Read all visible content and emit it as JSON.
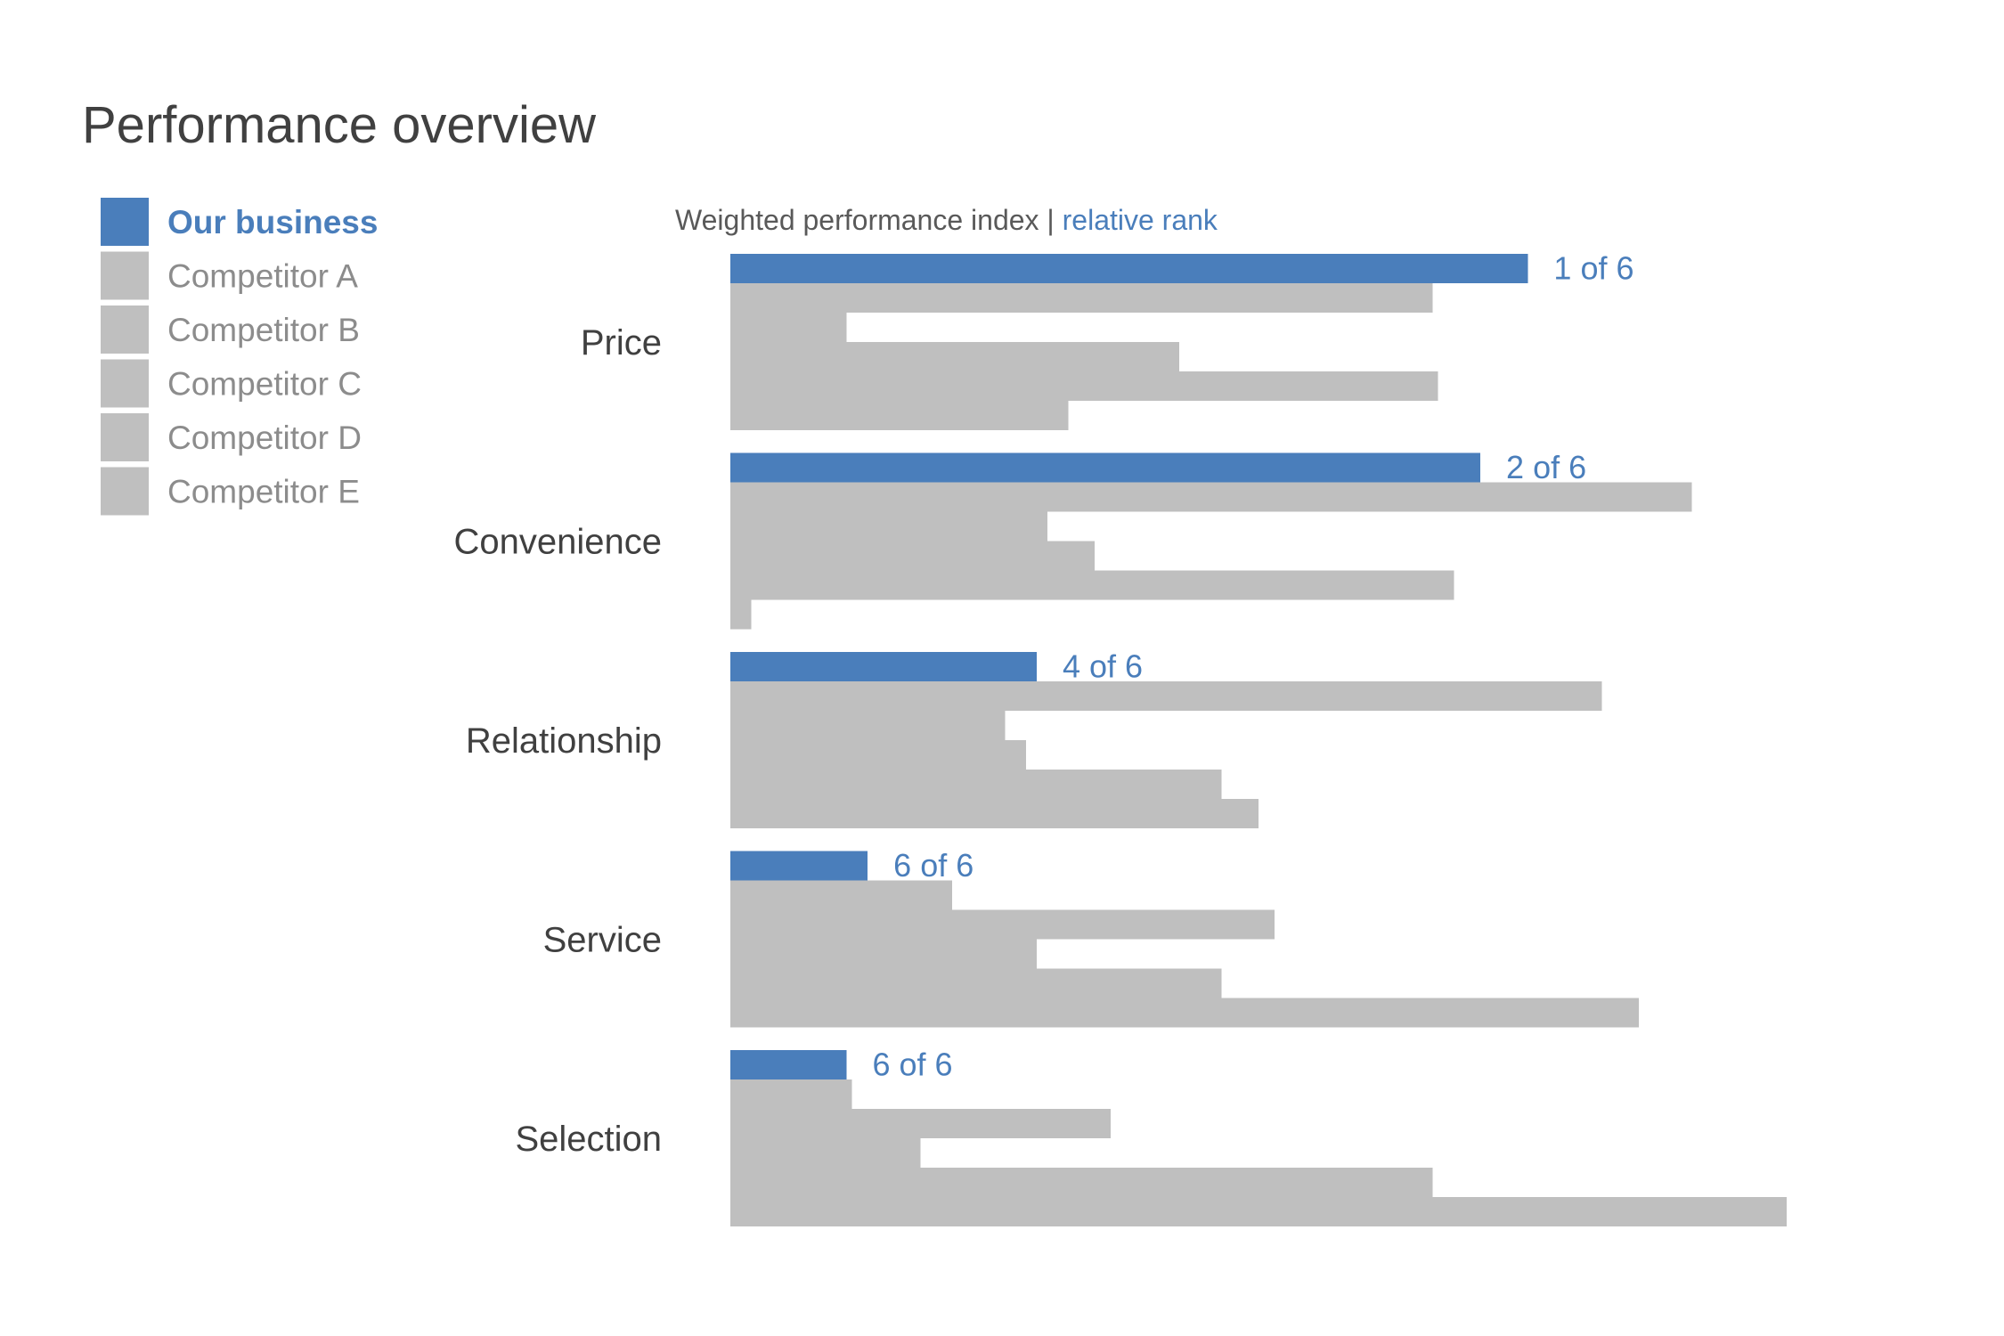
{
  "chart_data": {
    "type": "bar",
    "orientation": "horizontal",
    "title": "Performance overview",
    "subtitle": "Weighted performance index",
    "subtitle_separator": " | ",
    "subtitle_accent": "relative rank",
    "xlim": [
      0,
      100
    ],
    "grid": false,
    "legend": "top-left",
    "colors": {
      "highlight": "#4a7ebb",
      "competitor": "#bfbfbf",
      "text": "#404040",
      "legend_text": "#8c8c8c"
    },
    "categories": [
      "Price",
      "Convenience",
      "Relationship",
      "Service",
      "Selection"
    ],
    "series": [
      {
        "name": "Our business",
        "highlight": true,
        "values": [
          75.5,
          71,
          29,
          13,
          11
        ]
      },
      {
        "name": "Competitor A",
        "highlight": false,
        "values": [
          66.5,
          91,
          82.5,
          21,
          11.5
        ]
      },
      {
        "name": "Competitor B",
        "highlight": false,
        "values": [
          11,
          30,
          26,
          51.5,
          36
        ]
      },
      {
        "name": "Competitor C",
        "highlight": false,
        "values": [
          42.5,
          34.5,
          28,
          29,
          18
        ]
      },
      {
        "name": "Competitor D",
        "highlight": false,
        "values": [
          67,
          68.5,
          46.5,
          46.5,
          66.5
        ]
      },
      {
        "name": "Competitor E",
        "highlight": false,
        "values": [
          32,
          2,
          50,
          86,
          100
        ]
      }
    ],
    "rank_labels": [
      "1 of 6",
      "2 of 6",
      "4 of 6",
      "6 of 6",
      "6 of 6"
    ]
  }
}
